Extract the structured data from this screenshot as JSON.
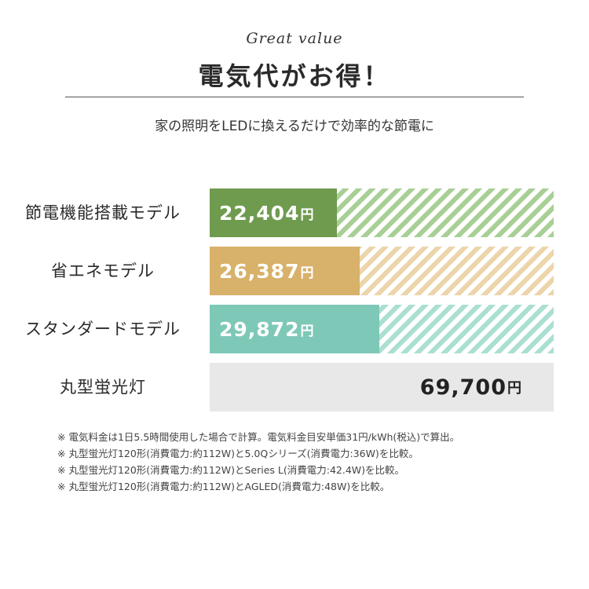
{
  "header": {
    "script_title": "Great value",
    "title": "電気代がお得！",
    "subtitle": "家の照明をLEDに換えるだけで効率的な節電に"
  },
  "chart_data": {
    "type": "bar",
    "orientation": "horizontal",
    "categories": [
      "節電機能搭載モデル",
      "省エネモデル",
      "スタンダードモデル",
      "丸型蛍光灯"
    ],
    "values": [
      22404,
      26387,
      29872,
      69700
    ],
    "value_labels": [
      "22,404",
      "26,387",
      "29,872",
      "69,700"
    ],
    "unit": "円",
    "xlim": [
      0,
      69700
    ],
    "colors": [
      "#6f9b4f",
      "#d8b16a",
      "#7ec8b8",
      "#e8e8e8"
    ],
    "stripe_colors": [
      "#a8cf95",
      "#ecd5aa",
      "#aadfd2"
    ],
    "grid": false,
    "legend": "none"
  },
  "notes": [
    "※ 電気料金は1日5.5時間使用した場合で計算。電気料金目安単価31円/kWh(税込)で算出。",
    "※ 丸型蛍光灯120形(消費電力:約112W)と5.0Qシリーズ(消費電力:36W)を比較。",
    "※ 丸型蛍光灯120形(消費電力:約112W)とSeries L(消費電力:42.4W)を比較。",
    "※ 丸型蛍光灯120形(消費電力:約112W)とAGLED(消費電力:48W)を比較。"
  ]
}
